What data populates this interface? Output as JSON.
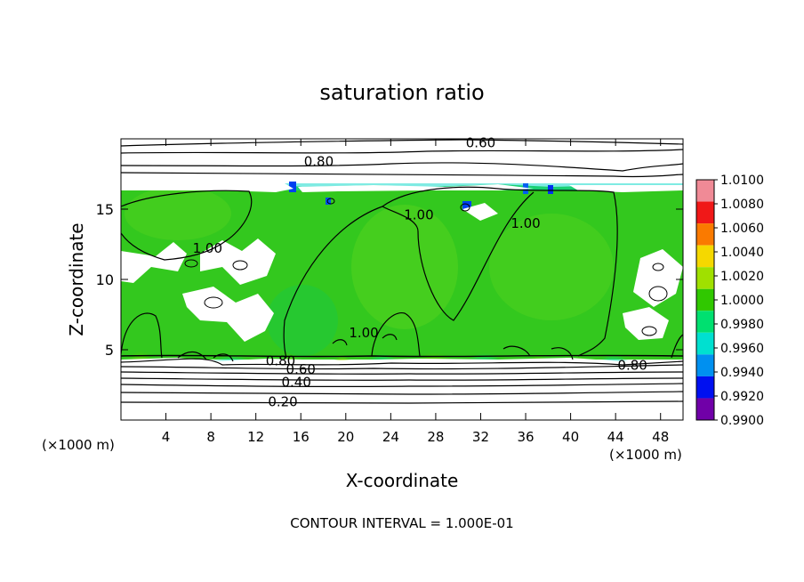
{
  "chart_data": {
    "type": "heatmap",
    "title": "saturation ratio",
    "xlabel": "X-coordinate",
    "ylabel": "Z-coordinate",
    "x_unit_label": "(×1000 m)",
    "x_unit_label_right": "(×1000 m)",
    "xlim": [
      0,
      50
    ],
    "ylim": [
      0,
      20
    ],
    "x_ticks": [
      4,
      8,
      12,
      16,
      20,
      24,
      28,
      32,
      36,
      40,
      44,
      48
    ],
    "y_ticks": [
      5,
      10,
      15
    ],
    "footer": "CONTOUR INTERVAL = 1.000E-01",
    "colorbar": {
      "labels": [
        "1.0100",
        "1.0080",
        "1.0060",
        "1.0040",
        "1.0020",
        "1.0000",
        "0.9980",
        "0.9960",
        "0.9940",
        "0.9920",
        "0.9900"
      ],
      "colors": [
        "#f08a96",
        "#f01818",
        "#fa7a00",
        "#f5d800",
        "#a0e000",
        "#30c800",
        "#00e070",
        "#00e0d0",
        "#0090f0",
        "#0010f0",
        "#7000a8"
      ]
    },
    "contour_labels": [
      {
        "text": "0.60",
        "x": 32.0,
        "z": 19.7
      },
      {
        "text": "0.80",
        "x": 17.6,
        "z": 18.4
      },
      {
        "text": "1.00",
        "x": 26.5,
        "z": 14.6
      },
      {
        "text": "1.00",
        "x": 36.0,
        "z": 14.0
      },
      {
        "text": "1.00",
        "x": 7.7,
        "z": 12.2
      },
      {
        "text": "1.00",
        "x": 21.6,
        "z": 6.2
      },
      {
        "text": "0.80",
        "x": 14.2,
        "z": 4.2
      },
      {
        "text": "0.60",
        "x": 16.0,
        "z": 3.6
      },
      {
        "text": "0.40",
        "x": 15.6,
        "z": 2.7
      },
      {
        "text": "0.20",
        "x": 14.4,
        "z": 1.3
      },
      {
        "text": "0.80",
        "x": 45.5,
        "z": 3.9
      }
    ],
    "grid": false,
    "legend": "colorbar-right"
  }
}
